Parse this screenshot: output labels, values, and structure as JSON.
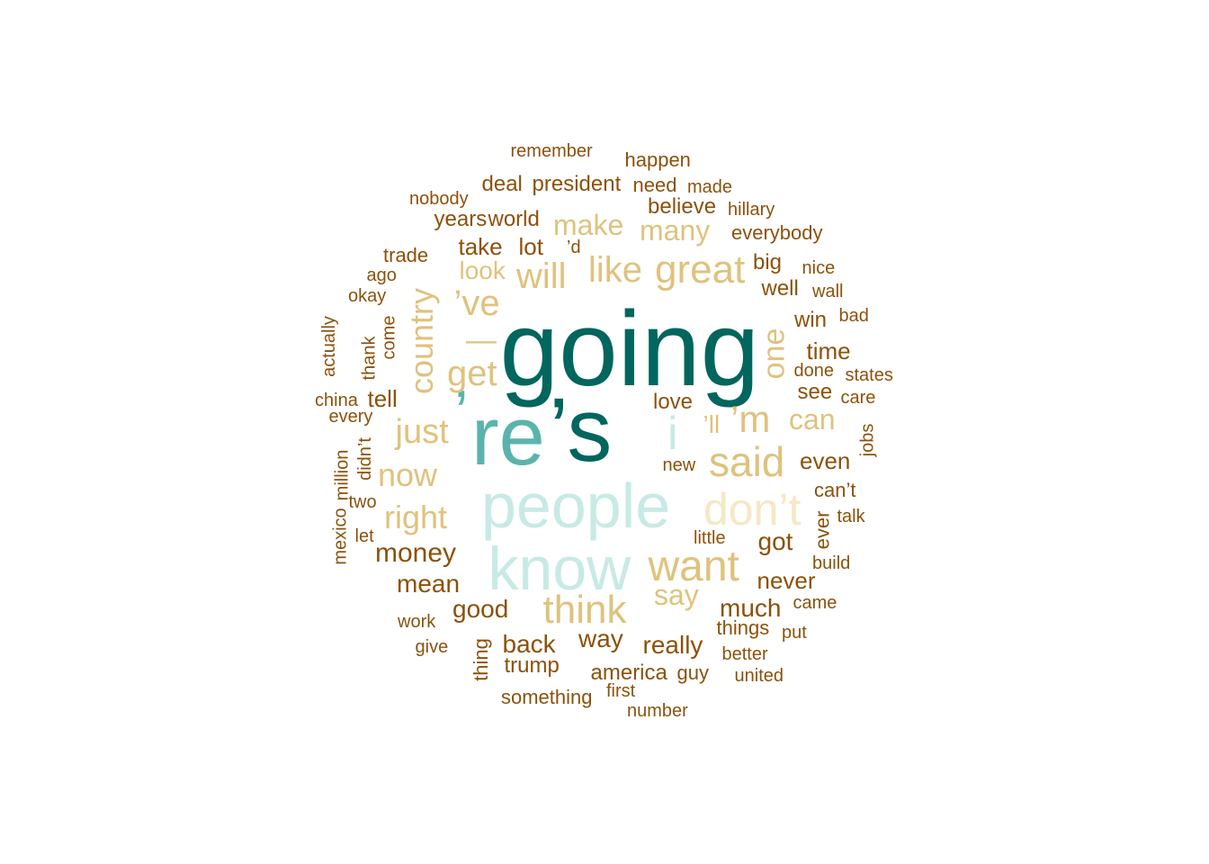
{
  "palette": {
    "teal_dark": "#01665e",
    "teal_mid": "#5ab4ac",
    "teal_light": "#c7eae5",
    "cream": "#f6e8c3",
    "tan": "#dfc27d",
    "tan_dark": "#bf812d",
    "brown": "#8c510a"
  },
  "words": [
    {
      "text": "going",
      "color": "teal_dark"
    },
    {
      "text": "’s",
      "color": "teal_dark"
    },
    {
      "text": "re",
      "color": "teal_mid"
    },
    {
      "text": "’",
      "color": "teal_mid"
    },
    {
      "text": "people",
      "color": "teal_light"
    },
    {
      "text": "know",
      "color": "teal_light"
    },
    {
      "text": "don’t",
      "color": "cream"
    },
    {
      "text": "i",
      "color": "teal_light"
    },
    {
      "text": "said",
      "color": "tan"
    },
    {
      "text": "want",
      "color": "tan"
    },
    {
      "text": "think",
      "color": "tan"
    },
    {
      "text": "great",
      "color": "tan"
    },
    {
      "text": "like",
      "color": "tan"
    },
    {
      "text": "will",
      "color": "tan"
    },
    {
      "text": "get",
      "color": "tan"
    },
    {
      "text": "country",
      "color": "tan"
    },
    {
      "text": "just",
      "color": "tan"
    },
    {
      "text": "now",
      "color": "tan"
    },
    {
      "text": "right",
      "color": "tan"
    },
    {
      "text": "one",
      "color": "tan"
    },
    {
      "text": "’m",
      "color": "tan"
    },
    {
      "text": "’ve",
      "color": "tan"
    },
    {
      "text": "—",
      "color": "tan"
    },
    {
      "text": "make",
      "color": "tan"
    },
    {
      "text": "many",
      "color": "tan"
    },
    {
      "text": "say",
      "color": "tan"
    },
    {
      "text": "can",
      "color": "tan"
    },
    {
      "text": "look",
      "color": "tan"
    },
    {
      "text": "’ll",
      "color": "tan"
    },
    {
      "text": "money",
      "color": "brown"
    },
    {
      "text": "mean",
      "color": "brown"
    },
    {
      "text": "good",
      "color": "brown"
    },
    {
      "text": "back",
      "color": "brown"
    },
    {
      "text": "way",
      "color": "brown"
    },
    {
      "text": "really",
      "color": "brown"
    },
    {
      "text": "much",
      "color": "brown"
    },
    {
      "text": "got",
      "color": "brown"
    },
    {
      "text": "even",
      "color": "brown"
    },
    {
      "text": "never",
      "color": "brown"
    },
    {
      "text": "love",
      "color": "brown"
    },
    {
      "text": "lot",
      "color": "brown"
    },
    {
      "text": "take",
      "color": "brown"
    },
    {
      "text": "tell",
      "color": "brown"
    },
    {
      "text": "trump",
      "color": "brown"
    },
    {
      "text": "america",
      "color": "brown"
    },
    {
      "text": "time",
      "color": "brown"
    },
    {
      "text": "see",
      "color": "brown"
    },
    {
      "text": "win",
      "color": "brown"
    },
    {
      "text": "well",
      "color": "brown"
    },
    {
      "text": "big",
      "color": "brown"
    },
    {
      "text": "believe",
      "color": "brown"
    },
    {
      "text": "world",
      "color": "brown"
    },
    {
      "text": "years",
      "color": "brown"
    },
    {
      "text": "president",
      "color": "brown"
    },
    {
      "text": "deal",
      "color": "brown"
    },
    {
      "text": "need",
      "color": "brown"
    },
    {
      "text": "everybody",
      "color": "brown"
    },
    {
      "text": "can’t",
      "color": "brown"
    },
    {
      "text": "things",
      "color": "brown"
    },
    {
      "text": "something",
      "color": "brown"
    },
    {
      "text": "thing",
      "color": "brown"
    },
    {
      "text": "guy",
      "color": "brown"
    },
    {
      "text": "better",
      "color": "brown"
    },
    {
      "text": "united",
      "color": "brown"
    },
    {
      "text": "put",
      "color": "brown"
    },
    {
      "text": "came",
      "color": "brown"
    },
    {
      "text": "build",
      "color": "brown"
    },
    {
      "text": "talk",
      "color": "brown"
    },
    {
      "text": "ever",
      "color": "brown"
    },
    {
      "text": "new",
      "color": "brown"
    },
    {
      "text": "little",
      "color": "brown"
    },
    {
      "text": "jobs",
      "color": "brown"
    },
    {
      "text": "care",
      "color": "brown"
    },
    {
      "text": "states",
      "color": "brown"
    },
    {
      "text": "done",
      "color": "brown"
    },
    {
      "text": "bad",
      "color": "brown"
    },
    {
      "text": "wall",
      "color": "brown"
    },
    {
      "text": "nice",
      "color": "brown"
    },
    {
      "text": "hillary",
      "color": "brown"
    },
    {
      "text": "made",
      "color": "brown"
    },
    {
      "text": "happen",
      "color": "brown"
    },
    {
      "text": "remember",
      "color": "brown"
    },
    {
      "text": "nobody",
      "color": "brown"
    },
    {
      "text": "trade",
      "color": "brown"
    },
    {
      "text": "ago",
      "color": "brown"
    },
    {
      "text": "okay",
      "color": "brown"
    },
    {
      "text": "’d",
      "color": "brown"
    },
    {
      "text": "come",
      "color": "brown"
    },
    {
      "text": "thank",
      "color": "brown"
    },
    {
      "text": "actually",
      "color": "brown"
    },
    {
      "text": "china",
      "color": "brown"
    },
    {
      "text": "every",
      "color": "brown"
    },
    {
      "text": "didn’t",
      "color": "brown"
    },
    {
      "text": "million",
      "color": "brown"
    },
    {
      "text": "mexico",
      "color": "brown"
    },
    {
      "text": "two",
      "color": "brown"
    },
    {
      "text": "let",
      "color": "brown"
    },
    {
      "text": "work",
      "color": "brown"
    },
    {
      "text": "give",
      "color": "brown"
    },
    {
      "text": "first",
      "color": "brown"
    },
    {
      "text": "number",
      "color": "brown"
    }
  ]
}
